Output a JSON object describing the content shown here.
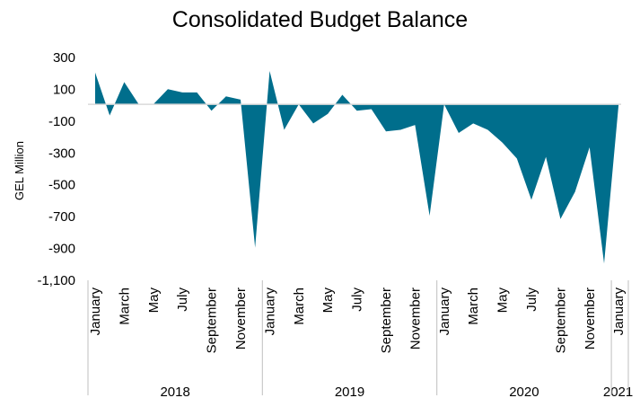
{
  "chart_data": {
    "type": "area",
    "title": "Consolidated Budget Balance",
    "ylabel": "GEL Million",
    "xlabel": "",
    "ylim": [
      -1100,
      300
    ],
    "yticks": [
      300,
      100,
      -100,
      -300,
      -500,
      -700,
      -900,
      -1100
    ],
    "ytick_labels": [
      "300",
      "100",
      "-100",
      "-300",
      "-500",
      "-700",
      "-900",
      "-1,100"
    ],
    "color": "#006E8C",
    "grid": false,
    "legend": "none",
    "x": [
      "2018-01",
      "2018-02",
      "2018-03",
      "2018-04",
      "2018-05",
      "2018-06",
      "2018-07",
      "2018-08",
      "2018-09",
      "2018-10",
      "2018-11",
      "2018-12",
      "2019-01",
      "2019-02",
      "2019-03",
      "2019-04",
      "2019-05",
      "2019-06",
      "2019-07",
      "2019-08",
      "2019-09",
      "2019-10",
      "2019-11",
      "2019-12",
      "2020-01",
      "2020-02",
      "2020-03",
      "2020-04",
      "2020-05",
      "2020-06",
      "2020-07",
      "2020-08",
      "2020-09",
      "2020-10",
      "2020-11",
      "2020-12",
      "2021-01"
    ],
    "values": [
      200,
      -70,
      140,
      0,
      0,
      95,
      75,
      75,
      -40,
      50,
      30,
      -900,
      210,
      -160,
      0,
      -120,
      -60,
      60,
      -40,
      -30,
      -170,
      -160,
      -130,
      -700,
      0,
      -180,
      -120,
      -160,
      -240,
      -340,
      -600,
      -330,
      -720,
      -550,
      -270,
      -1000,
      0
    ],
    "month_labels": [
      {
        "index": 0,
        "text": "January"
      },
      {
        "index": 2,
        "text": "March"
      },
      {
        "index": 4,
        "text": "May"
      },
      {
        "index": 6,
        "text": "July"
      },
      {
        "index": 8,
        "text": "September"
      },
      {
        "index": 10,
        "text": "November"
      },
      {
        "index": 12,
        "text": "January"
      },
      {
        "index": 14,
        "text": "March"
      },
      {
        "index": 16,
        "text": "May"
      },
      {
        "index": 18,
        "text": "July"
      },
      {
        "index": 20,
        "text": "September"
      },
      {
        "index": 22,
        "text": "November"
      },
      {
        "index": 24,
        "text": "January"
      },
      {
        "index": 26,
        "text": "March"
      },
      {
        "index": 28,
        "text": "May"
      },
      {
        "index": 30,
        "text": "July"
      },
      {
        "index": 32,
        "text": "September"
      },
      {
        "index": 34,
        "text": "November"
      },
      {
        "index": 36,
        "text": "January"
      }
    ],
    "year_groups": [
      {
        "label": "2018",
        "start": 0,
        "end": 11
      },
      {
        "label": "2019",
        "start": 12,
        "end": 23
      },
      {
        "label": "2020",
        "start": 24,
        "end": 35
      },
      {
        "label": "2021",
        "start": 36,
        "end": 36
      }
    ]
  }
}
